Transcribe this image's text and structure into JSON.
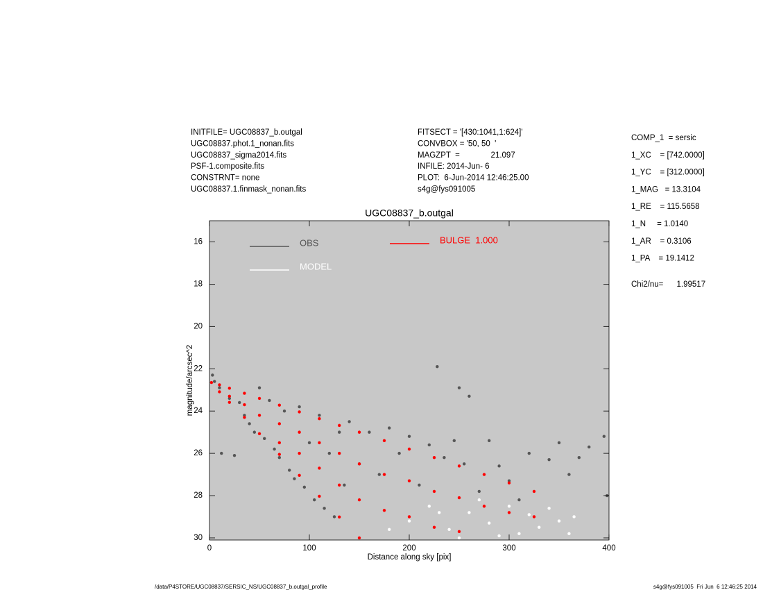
{
  "header": {
    "left": [
      "INITFILE= UGC08837_b.outgal",
      "UGC08837.phot.1_nonan.fits",
      "UGC08837_sigma2014.fits",
      "PSF-1.composite.fits",
      "CONSTRNT= none",
      "UGC08837.1.finmask_nonan.fits"
    ],
    "middle": [
      "FITSECT = '[430:1041,1:624]'",
      "CONVBOX = '50, 50  '",
      "MAGZPT  =              21.097",
      "INFILE: 2014-Jun- 6",
      "PLOT:  6-Jun-2014 12:46:25.00",
      "s4g@fys091005"
    ]
  },
  "parameters": [
    "COMP_1  = sersic",
    "1_XC    = [742.0000]",
    "1_YC    = [312.0000]",
    "1_MAG   = 13.3104",
    "1_RE    = 115.5658",
    "1_N     = 1.0140",
    "1_AR    = 0.3106",
    "1_PA    = 19.1412"
  ],
  "chi2": "Chi2/nu=      1.99517",
  "footer": {
    "left": "/data/P4STORE/UGC08837/SERSIC_NS/UGC08837_b.outgal_profile",
    "right": "s4g@fys091005  Fri Jun  6 12:46:25 2014"
  },
  "chart_data": {
    "type": "scatter",
    "title": "UGC08837_b.outgal",
    "x_label": "Distance along sky [pix]",
    "y_label": "magnitude/arcsec^2",
    "xlim": [
      0,
      400
    ],
    "ylim": [
      30.1,
      15
    ],
    "xticks": [
      0,
      100,
      200,
      300,
      400
    ],
    "yticks": [
      16,
      18,
      20,
      22,
      24,
      26,
      28,
      30
    ],
    "background": "#c8c8c8",
    "series": [
      {
        "name": "OBS",
        "color": "#555555",
        "x": [
          3,
          5,
          10,
          12,
          20,
          25,
          30,
          35,
          40,
          45,
          50,
          55,
          60,
          65,
          70,
          75,
          80,
          85,
          90,
          95,
          100,
          105,
          110,
          115,
          120,
          125,
          130,
          135,
          140,
          150,
          160,
          170,
          180,
          190,
          200,
          210,
          220,
          228,
          235,
          245,
          250,
          255,
          260,
          270,
          280,
          290,
          300,
          310,
          320,
          340,
          350,
          360,
          370,
          380,
          395,
          398
        ],
        "values": [
          22.3,
          22.6,
          22.9,
          26,
          23.4,
          26.1,
          23.6,
          24.2,
          24.6,
          25,
          22.9,
          25.3,
          23.5,
          25.8,
          26.2,
          24,
          26.8,
          27.2,
          23.8,
          27.6,
          25.5,
          28.2,
          24.2,
          28.6,
          26,
          29,
          25,
          27.5,
          24.5,
          26.5,
          25,
          27,
          24.8,
          26,
          25.2,
          27.5,
          25.6,
          21.9,
          26.2,
          25.4,
          22.9,
          26.5,
          23.3,
          27.8,
          25.4,
          26.6,
          27.3,
          28.2,
          26,
          26.3,
          25.5,
          27,
          26.2,
          25.7,
          25.2,
          28
        ]
      },
      {
        "name": "MODEL",
        "color": "#ffffff",
        "x": [
          180,
          200,
          220,
          230,
          240,
          250,
          260,
          270,
          280,
          290,
          300,
          310,
          320,
          330,
          340,
          350,
          360,
          365
        ],
        "values": [
          29.6,
          29.2,
          28.5,
          28.8,
          29.6,
          30,
          28.8,
          28.2,
          29.3,
          29.9,
          28.5,
          29.8,
          28.9,
          29.5,
          28.6,
          29.2,
          29.8,
          29
        ]
      },
      {
        "name": "BULGE  1.000",
        "color": "#ff0000",
        "x": [
          2,
          10,
          10,
          20,
          20,
          20,
          35,
          35,
          35,
          50,
          50,
          50,
          70,
          70,
          70,
          70,
          90,
          90,
          90,
          90,
          110,
          110,
          110,
          110,
          130,
          130,
          130,
          130,
          150,
          150,
          150,
          150,
          175,
          175,
          175,
          200,
          200,
          200,
          225,
          225,
          225,
          250,
          250,
          250,
          275,
          275,
          300,
          300,
          325,
          325
        ],
        "values": [
          22.65,
          22.76,
          23.09,
          22.92,
          23.3,
          23.59,
          23.16,
          23.7,
          24.3,
          23.4,
          24.2,
          25.07,
          23.72,
          24.6,
          25.5,
          26.05,
          24.04,
          25,
          26,
          27.04,
          24.36,
          25.5,
          26.7,
          28.03,
          24.68,
          26,
          27.5,
          29.01,
          25,
          26.5,
          28.2,
          30,
          25.4,
          27,
          28.7,
          25.8,
          27.3,
          29,
          26.2,
          27.8,
          29.5,
          26.6,
          28.1,
          29.7,
          27,
          28.5,
          27.4,
          28.8,
          27.8,
          29
        ]
      }
    ]
  }
}
